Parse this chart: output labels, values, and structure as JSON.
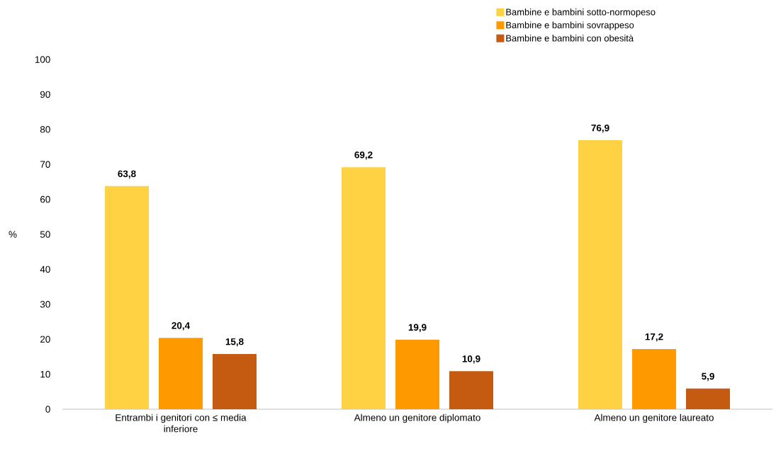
{
  "chart_data": {
    "type": "bar",
    "ylabel": "%",
    "categories": [
      "Entrambi i genitori con ≤ media inferiore",
      "Almeno un genitore diplomato",
      "Almeno un genitore laureato"
    ],
    "series": [
      {
        "name": "Bambine e bambini sotto-normopeso",
        "color": "#ffd243",
        "values": [
          63.8,
          69.2,
          76.9
        ],
        "value_labels": [
          "63,8",
          "69,2",
          "76,9"
        ]
      },
      {
        "name": "Bambine e bambini sovrappeso",
        "color": "#ff9900",
        "values": [
          20.4,
          19.9,
          17.2
        ],
        "value_labels": [
          "20,4",
          "19,9",
          "17,2"
        ]
      },
      {
        "name": "Bambine e bambini con obesità",
        "color": "#c55a11",
        "values": [
          15.8,
          10.9,
          5.9
        ],
        "value_labels": [
          "15,8",
          "10,9",
          "5,9"
        ]
      }
    ],
    "ylim": [
      0,
      100
    ],
    "yticks": [
      0,
      10,
      20,
      30,
      40,
      50,
      60,
      70,
      80,
      90,
      100
    ],
    "grid": false,
    "legend": "top right"
  }
}
